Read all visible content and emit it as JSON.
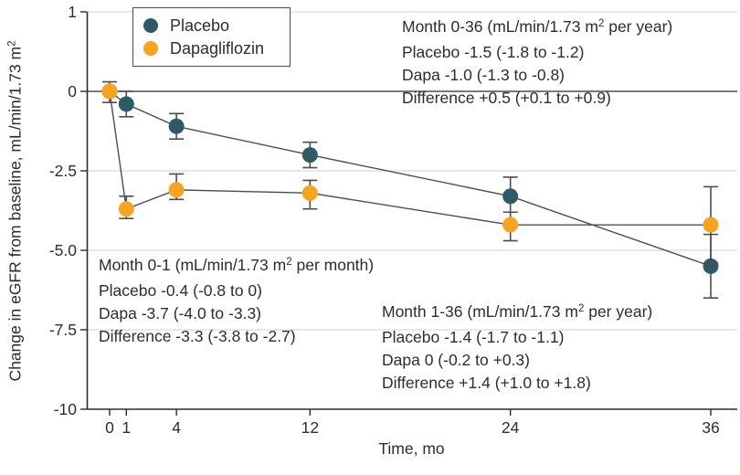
{
  "figure": {
    "legend": {
      "items": [
        {
          "label": "Placebo",
          "color": "#2e5a68"
        },
        {
          "label": "Dapagliflozin",
          "color": "#f8a321"
        }
      ]
    },
    "x_axis": {
      "label": "Time, mo"
    },
    "y_axis": {
      "label_pre": "Change in eGFR from baseline, mL/min/1.73 m",
      "label_sup": "2"
    },
    "annotations": {
      "month_0_36": {
        "title_pre": "Month 0-36 (mL/min/1.73 m",
        "title_sup": "2",
        "title_post": " per year)",
        "placebo": "Placebo -1.5 (-1.8 to -1.2)",
        "dapa": "Dapa -1.0 (-1.3 to -0.8)",
        "difference": "Difference +0.5 (+0.1 to +0.9)"
      },
      "month_0_1": {
        "title_pre": "Month 0-1 (mL/min/1.73 m",
        "title_sup": "2",
        "title_post": " per month)",
        "placebo": "Placebo -0.4 (-0.8 to 0)",
        "dapa": "Dapa -3.7 (-4.0 to -3.3)",
        "difference": "Difference -3.3 (-3.8 to -2.7)"
      },
      "month_1_36": {
        "title_pre": "Month 1-36 (mL/min/1.73 m",
        "title_sup": "2",
        "title_post": " per year)",
        "placebo": "Placebo -1.4 (-1.7 to -1.1)",
        "dapa": "Dapa 0 (-0.2 to +0.3)",
        "difference": "Difference +1.4 (+1.0 to +1.8)"
      }
    }
  },
  "chart_data": {
    "type": "line",
    "title": "",
    "xlabel": "Time, mo",
    "ylabel": "Change in eGFR from baseline, mL/min/1.73 m²",
    "x": [
      0,
      1,
      4,
      12,
      24,
      36
    ],
    "x_tick_labels": [
      "0",
      "1",
      "4",
      "12",
      "24",
      "36"
    ],
    "y_tick_labels": [
      "1",
      "0",
      "-2.5",
      "-5.0",
      "-7.5",
      "-10"
    ],
    "y_tick_values": [
      1,
      0,
      -2.5,
      -5.0,
      -7.5,
      -10
    ],
    "ylim": [
      -10,
      1
    ],
    "xlim": [
      0,
      36
    ],
    "grid": "horizontal",
    "legend_position": "top-left-inside",
    "series": [
      {
        "name": "Placebo",
        "color": "#2e5a68",
        "points": [
          {
            "x": 0,
            "y": 0,
            "lo": null,
            "hi": null
          },
          {
            "x": 1,
            "y": -0.4,
            "lo": -0.8,
            "hi": 0
          },
          {
            "x": 4,
            "y": -1.1,
            "lo": -1.5,
            "hi": -0.7
          },
          {
            "x": 12,
            "y": -2.0,
            "lo": -2.4,
            "hi": -1.6
          },
          {
            "x": 24,
            "y": -3.3,
            "lo": -3.8,
            "hi": -2.7
          },
          {
            "x": 36,
            "y": -5.5,
            "lo": -6.5,
            "hi": -4.5
          }
        ]
      },
      {
        "name": "Dapagliflozin",
        "color": "#f8a321",
        "points": [
          {
            "x": 0,
            "y": 0,
            "lo": -0.35,
            "hi": 0.3
          },
          {
            "x": 1,
            "y": -3.7,
            "lo": -4.0,
            "hi": -3.3
          },
          {
            "x": 4,
            "y": -3.1,
            "lo": -3.4,
            "hi": -2.6
          },
          {
            "x": 12,
            "y": -3.2,
            "lo": -3.7,
            "hi": -2.8
          },
          {
            "x": 24,
            "y": -4.2,
            "lo": -4.7,
            "hi": -3.8
          },
          {
            "x": 36,
            "y": -4.2,
            "lo": -5.4,
            "hi": -3.0
          }
        ]
      }
    ],
    "colors": {
      "error_and_lines": "#4d4d4d",
      "grid": "#dadada",
      "zero_line": "#4f4f4f",
      "axis": "#2b2b2b",
      "text": "#2d2d2d"
    }
  }
}
